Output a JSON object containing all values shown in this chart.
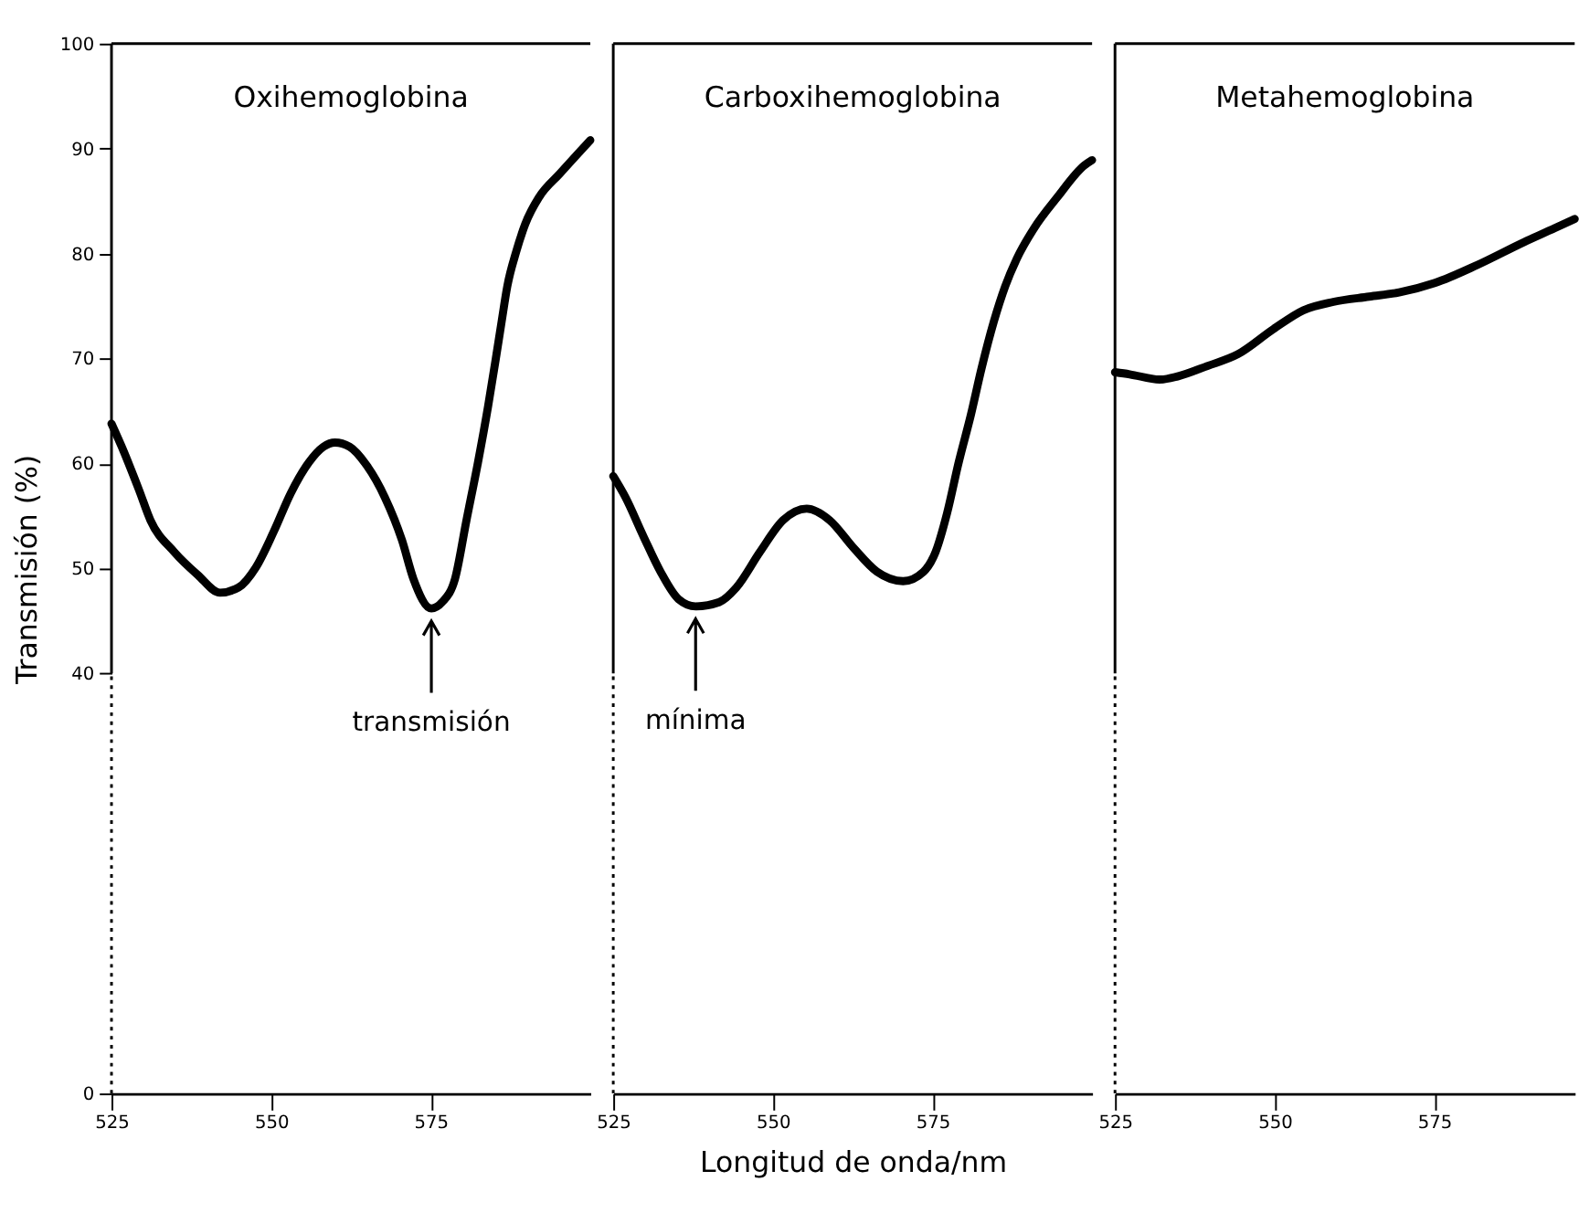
{
  "chart_data": [
    {
      "type": "line",
      "title": "Oxihemoglobina",
      "ylabel": "Transmisión (%)",
      "color": "#000000",
      "x": [
        525.0,
        526.6,
        529.3,
        531.1,
        534.8,
        538.5,
        542.0,
        544.9,
        547.6,
        550.4,
        553.1,
        555.9,
        558.2,
        560.0,
        562.3,
        565.0,
        567.8,
        570.5,
        572.3,
        575.1,
        576.8,
        578.8,
        580.6,
        582.4,
        584.0,
        585.2,
        586.1,
        587.0,
        588.4,
        589.8,
        592.0,
        595.2,
        600.0
      ],
      "values": [
        63.8,
        61.6,
        57.5,
        54.6,
        51.6,
        49.4,
        47.7,
        48.2,
        50.1,
        53.5,
        57.2,
        60.1,
        61.6,
        62.0,
        61.6,
        59.8,
        56.8,
        52.7,
        49.0,
        46.2,
        46.8,
        49.0,
        54.6,
        60.1,
        65.5,
        70.0,
        73.5,
        76.9,
        80.2,
        82.8,
        85.4,
        87.6,
        90.8
      ],
      "xlim": [
        525,
        600
      ],
      "ylim": [
        0,
        100
      ],
      "xticks": [
        525,
        550,
        575
      ],
      "yticks": [
        0,
        40,
        50,
        60,
        70,
        80,
        90,
        100
      ],
      "annotations": [
        {
          "text": "transmisión",
          "x": 575.1,
          "y": 46.2
        }
      ]
    },
    {
      "type": "line",
      "title": "Carboxihemoglobina",
      "xlabel": "Longitud de onda/nm",
      "color": "#000000",
      "x": [
        525.0,
        526.9,
        529.7,
        532.4,
        535.2,
        537.9,
        541.6,
        544.3,
        548.0,
        551.6,
        555.3,
        558.9,
        562.6,
        566.3,
        570.4,
        573.6,
        575.5,
        577.3,
        579.1,
        581.0,
        582.7,
        584.6,
        586.4,
        588.2,
        590.9,
        594.6,
        598.8,
        600.0
      ],
      "values": [
        58.8,
        56.8,
        53.1,
        49.7,
        47.1,
        46.4,
        46.8,
        48.2,
        51.6,
        54.6,
        55.7,
        54.6,
        52.0,
        49.7,
        48.8,
        49.7,
        51.6,
        55.3,
        60.1,
        64.6,
        69.1,
        73.5,
        76.9,
        79.5,
        82.4,
        85.4,
        88.4,
        88.9
      ],
      "xlim": [
        525,
        600
      ],
      "ylim": [
        0,
        100
      ],
      "xticks": [
        525,
        550,
        575
      ],
      "tick_labels": "x",
      "annotations": [
        {
          "text": "mínima",
          "x": 537.9,
          "y": 46.4
        }
      ]
    },
    {
      "type": "line",
      "title": "Metahemoglobina",
      "color": "#000000",
      "x": [
        525.0,
        527.3,
        532.0,
        534.8,
        539.5,
        544.2,
        549.8,
        554.5,
        559.2,
        564.8,
        569.5,
        575.1,
        581.7,
        589.1,
        593.8,
        597.0
      ],
      "values": [
        68.7,
        68.5,
        68.0,
        68.3,
        69.3,
        70.4,
        72.8,
        74.6,
        75.4,
        75.9,
        76.3,
        77.2,
        78.9,
        81.1,
        82.4,
        83.3
      ],
      "xlim": [
        525,
        597
      ],
      "ylim": [
        0,
        100
      ],
      "xticks": [
        525,
        550,
        575
      ],
      "tick_labels": "x"
    }
  ]
}
